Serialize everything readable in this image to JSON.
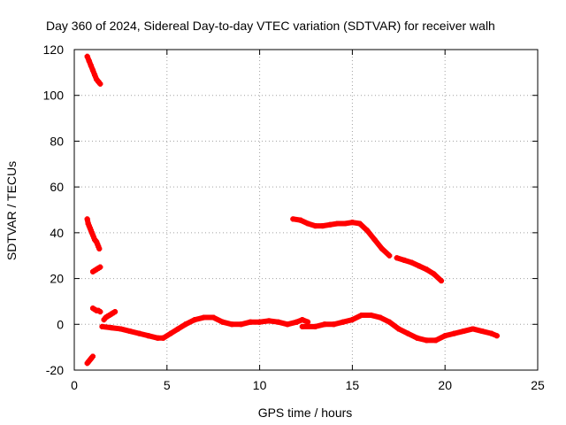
{
  "chart_data": {
    "type": "scatter",
    "title": "Day 360 of 2024, Sidereal Day-to-day VTEC variation (SDTVAR) for receiver walh",
    "xlabel": "GPS time / hours",
    "ylabel": "SDTVAR / TECUs",
    "xlim": [
      0,
      25
    ],
    "ylim": [
      -20,
      120
    ],
    "xticks": [
      0,
      5,
      10,
      15,
      20,
      25
    ],
    "yticks": [
      -20,
      0,
      20,
      40,
      60,
      80,
      100,
      120
    ],
    "grid": true,
    "marker": "+",
    "color": "#ff0000",
    "series": [
      {
        "name": "arc-high",
        "x": [
          0.7,
          0.8,
          0.9,
          1.0,
          1.1,
          1.2,
          1.3,
          1.4
        ],
        "y": [
          117,
          115,
          113,
          111,
          109,
          107,
          106,
          105
        ]
      },
      {
        "name": "arc-40",
        "x": [
          0.7,
          0.75,
          0.8,
          0.85,
          0.9,
          0.95,
          1.0,
          1.05,
          1.1,
          1.15,
          1.2,
          1.25,
          1.3,
          1.35
        ],
        "y": [
          46,
          44,
          43,
          42,
          41,
          40,
          39,
          38,
          37,
          36.5,
          36,
          35,
          34,
          33
        ]
      },
      {
        "name": "arc-24",
        "x": [
          1.0,
          1.1,
          1.2,
          1.3,
          1.4
        ],
        "y": [
          23,
          23.5,
          24,
          24.5,
          25
        ]
      },
      {
        "name": "arc-6",
        "x": [
          1.0,
          1.1,
          1.2,
          1.3,
          1.4
        ],
        "y": [
          7,
          6.5,
          6,
          6,
          5.5
        ]
      },
      {
        "name": "arc-neg",
        "x": [
          0.7,
          0.75,
          0.8,
          0.85,
          0.9,
          0.95,
          1.0
        ],
        "y": [
          -17,
          -16.5,
          -16,
          -15.5,
          -15,
          -14.5,
          -14
        ]
      },
      {
        "name": "arc-rise",
        "x": [
          1.6,
          1.7,
          1.8,
          1.9,
          2.0,
          2.1,
          2.2
        ],
        "y": [
          2,
          3,
          3.5,
          4,
          4.5,
          5,
          5.5
        ]
      },
      {
        "name": "arc-main",
        "x": [
          1.5,
          2.0,
          2.5,
          3.0,
          3.5,
          4.0,
          4.5,
          4.8,
          5.2,
          5.6,
          6.0,
          6.5,
          7.0,
          7.5,
          8.0,
          8.5,
          9.0,
          9.5,
          10.0,
          10.5,
          11.0,
          11.5,
          12.0,
          12.3,
          12.6
        ],
        "y": [
          -1,
          -1.5,
          -2,
          -3,
          -4,
          -5,
          -6,
          -6,
          -4,
          -2,
          0,
          2,
          3,
          3,
          1,
          0,
          0,
          1,
          1,
          1.5,
          1,
          0,
          1,
          2,
          1
        ]
      },
      {
        "name": "arc-late",
        "x": [
          12.3,
          13.0,
          13.5,
          14.0,
          14.5,
          15.0,
          15.5,
          16.0,
          16.5,
          17.0,
          17.5,
          18.0,
          18.5,
          19.0,
          19.5,
          20.0,
          20.5,
          21.0,
          21.5,
          22.0,
          22.5,
          22.8
        ],
        "y": [
          -1,
          -1,
          0,
          0,
          1,
          2,
          4,
          4,
          3,
          1,
          -2,
          -4,
          -6,
          -7,
          -7,
          -5,
          -4,
          -3,
          -2,
          -3,
          -4,
          -5
        ]
      },
      {
        "name": "arc-45",
        "x": [
          11.8,
          12.2,
          12.6,
          13.0,
          13.4,
          13.8,
          14.2,
          14.6,
          15.0,
          15.4,
          15.8,
          16.2,
          16.6,
          17.0
        ],
        "y": [
          46,
          45.5,
          44,
          43,
          43,
          43.5,
          44,
          44,
          44.5,
          44,
          41,
          37,
          33,
          30
        ]
      },
      {
        "name": "arc-29",
        "x": [
          17.4,
          17.8,
          18.2,
          18.6,
          19.0,
          19.4,
          19.8
        ],
        "y": [
          29,
          28,
          27,
          25.5,
          24,
          22,
          19
        ]
      }
    ]
  }
}
